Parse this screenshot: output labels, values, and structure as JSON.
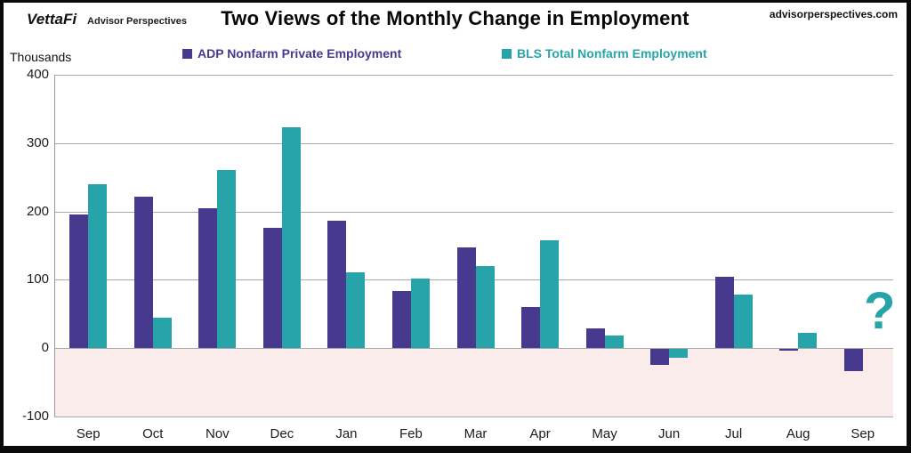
{
  "header": {
    "logo": "VettaFi",
    "logo_sub": "Advisor Perspectives",
    "title": "Two Views of the Monthly Change in Employment",
    "website": "advisorperspectives.com"
  },
  "chart_data": {
    "type": "bar",
    "title": "Two Views of the Monthly Change in Employment",
    "categories": [
      "Sep",
      "Oct",
      "Nov",
      "Dec",
      "Jan",
      "Feb",
      "Mar",
      "Apr",
      "May",
      "Jun",
      "Jul",
      "Aug",
      "Sep"
    ],
    "series": [
      {
        "name": "ADP Nonfarm Private Employment",
        "color": "#47398E",
        "values": [
          195,
          221,
          205,
          176,
          187,
          84,
          147,
          60,
          29,
          -23,
          104,
          -3,
          -32
        ]
      },
      {
        "name": "BLS Total Nonfarm Employment",
        "color": "#27A4AA",
        "values": [
          240,
          44,
          261,
          323,
          111,
          102,
          120,
          158,
          19,
          -13,
          79,
          22,
          null
        ]
      }
    ],
    "xlabel": "",
    "ylabel": "Thousands",
    "ylim": [
      -100,
      400
    ],
    "yticks": [
      400,
      300,
      200,
      100,
      0,
      -100
    ],
    "grid": true,
    "legend_position": "top",
    "missing_marker": "?",
    "negative_region_color": "#FBECEC",
    "gridline_color": "#a8a8a8"
  }
}
